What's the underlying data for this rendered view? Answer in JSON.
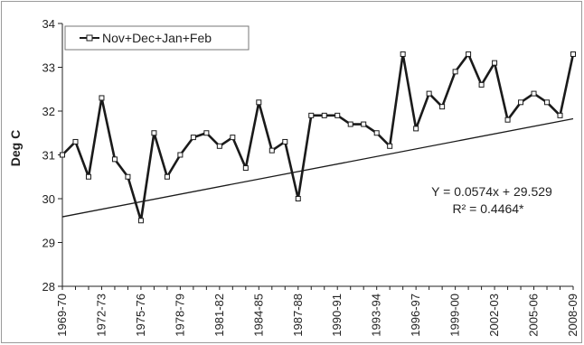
{
  "chart_data": {
    "type": "line",
    "xlabel": "",
    "ylabel": "Deg C",
    "ylim": [
      28,
      34
    ],
    "yticks": [
      28,
      29,
      30,
      31,
      32,
      33,
      34
    ],
    "grid": false,
    "legend_position": "top-left",
    "series": [
      {
        "name": "Nov+Dec+Jan+Feb",
        "color": "#1a1a1a",
        "marker": "open-square",
        "x": [
          "1969-70",
          "1970-71",
          "1971-72",
          "1972-73",
          "1973-74",
          "1974-75",
          "1975-76",
          "1976-77",
          "1977-78",
          "1978-79",
          "1979-80",
          "1980-81",
          "1981-82",
          "1982-83",
          "1983-84",
          "1984-85",
          "1985-86",
          "1986-87",
          "1987-88",
          "1988-89",
          "1989-90",
          "1990-91",
          "1991-92",
          "1992-93",
          "1993-94",
          "1994-95",
          "1995-96",
          "1996-97",
          "1997-98",
          "1998-99",
          "1999-00",
          "2000-01",
          "2001-02",
          "2002-03",
          "2003-04",
          "2004-05",
          "2005-06",
          "2006-07",
          "2007-08",
          "2008-09"
        ],
        "values": [
          31.0,
          31.3,
          30.5,
          32.3,
          30.9,
          30.5,
          29.5,
          31.5,
          30.5,
          31.0,
          31.4,
          31.5,
          31.2,
          31.4,
          30.7,
          32.2,
          31.1,
          31.3,
          30.0,
          31.9,
          31.9,
          31.9,
          31.7,
          31.7,
          31.5,
          31.2,
          33.3,
          31.6,
          32.4,
          32.1,
          32.9,
          33.3,
          32.6,
          33.1,
          31.8,
          32.2,
          32.4,
          32.2,
          31.9,
          33.3
        ]
      }
    ],
    "x_tick_labels": [
      "1969-70",
      "1972-73",
      "1975-76",
      "1978-79",
      "1981-82",
      "1984-85",
      "1987-88",
      "1990-91",
      "1993-94",
      "1996-97",
      "1999-00",
      "2002-03",
      "2005-06",
      "2008-09"
    ],
    "x_tick_indices": [
      0,
      3,
      6,
      9,
      12,
      15,
      18,
      21,
      24,
      27,
      30,
      33,
      36,
      39
    ],
    "trendline": {
      "slope": 0.0574,
      "intercept": 29.529,
      "color": "#1a1a1a"
    },
    "annotations": {
      "equation": "Y = 0.0574x + 29.529",
      "r_squared": "R² = 0.4464*"
    }
  }
}
